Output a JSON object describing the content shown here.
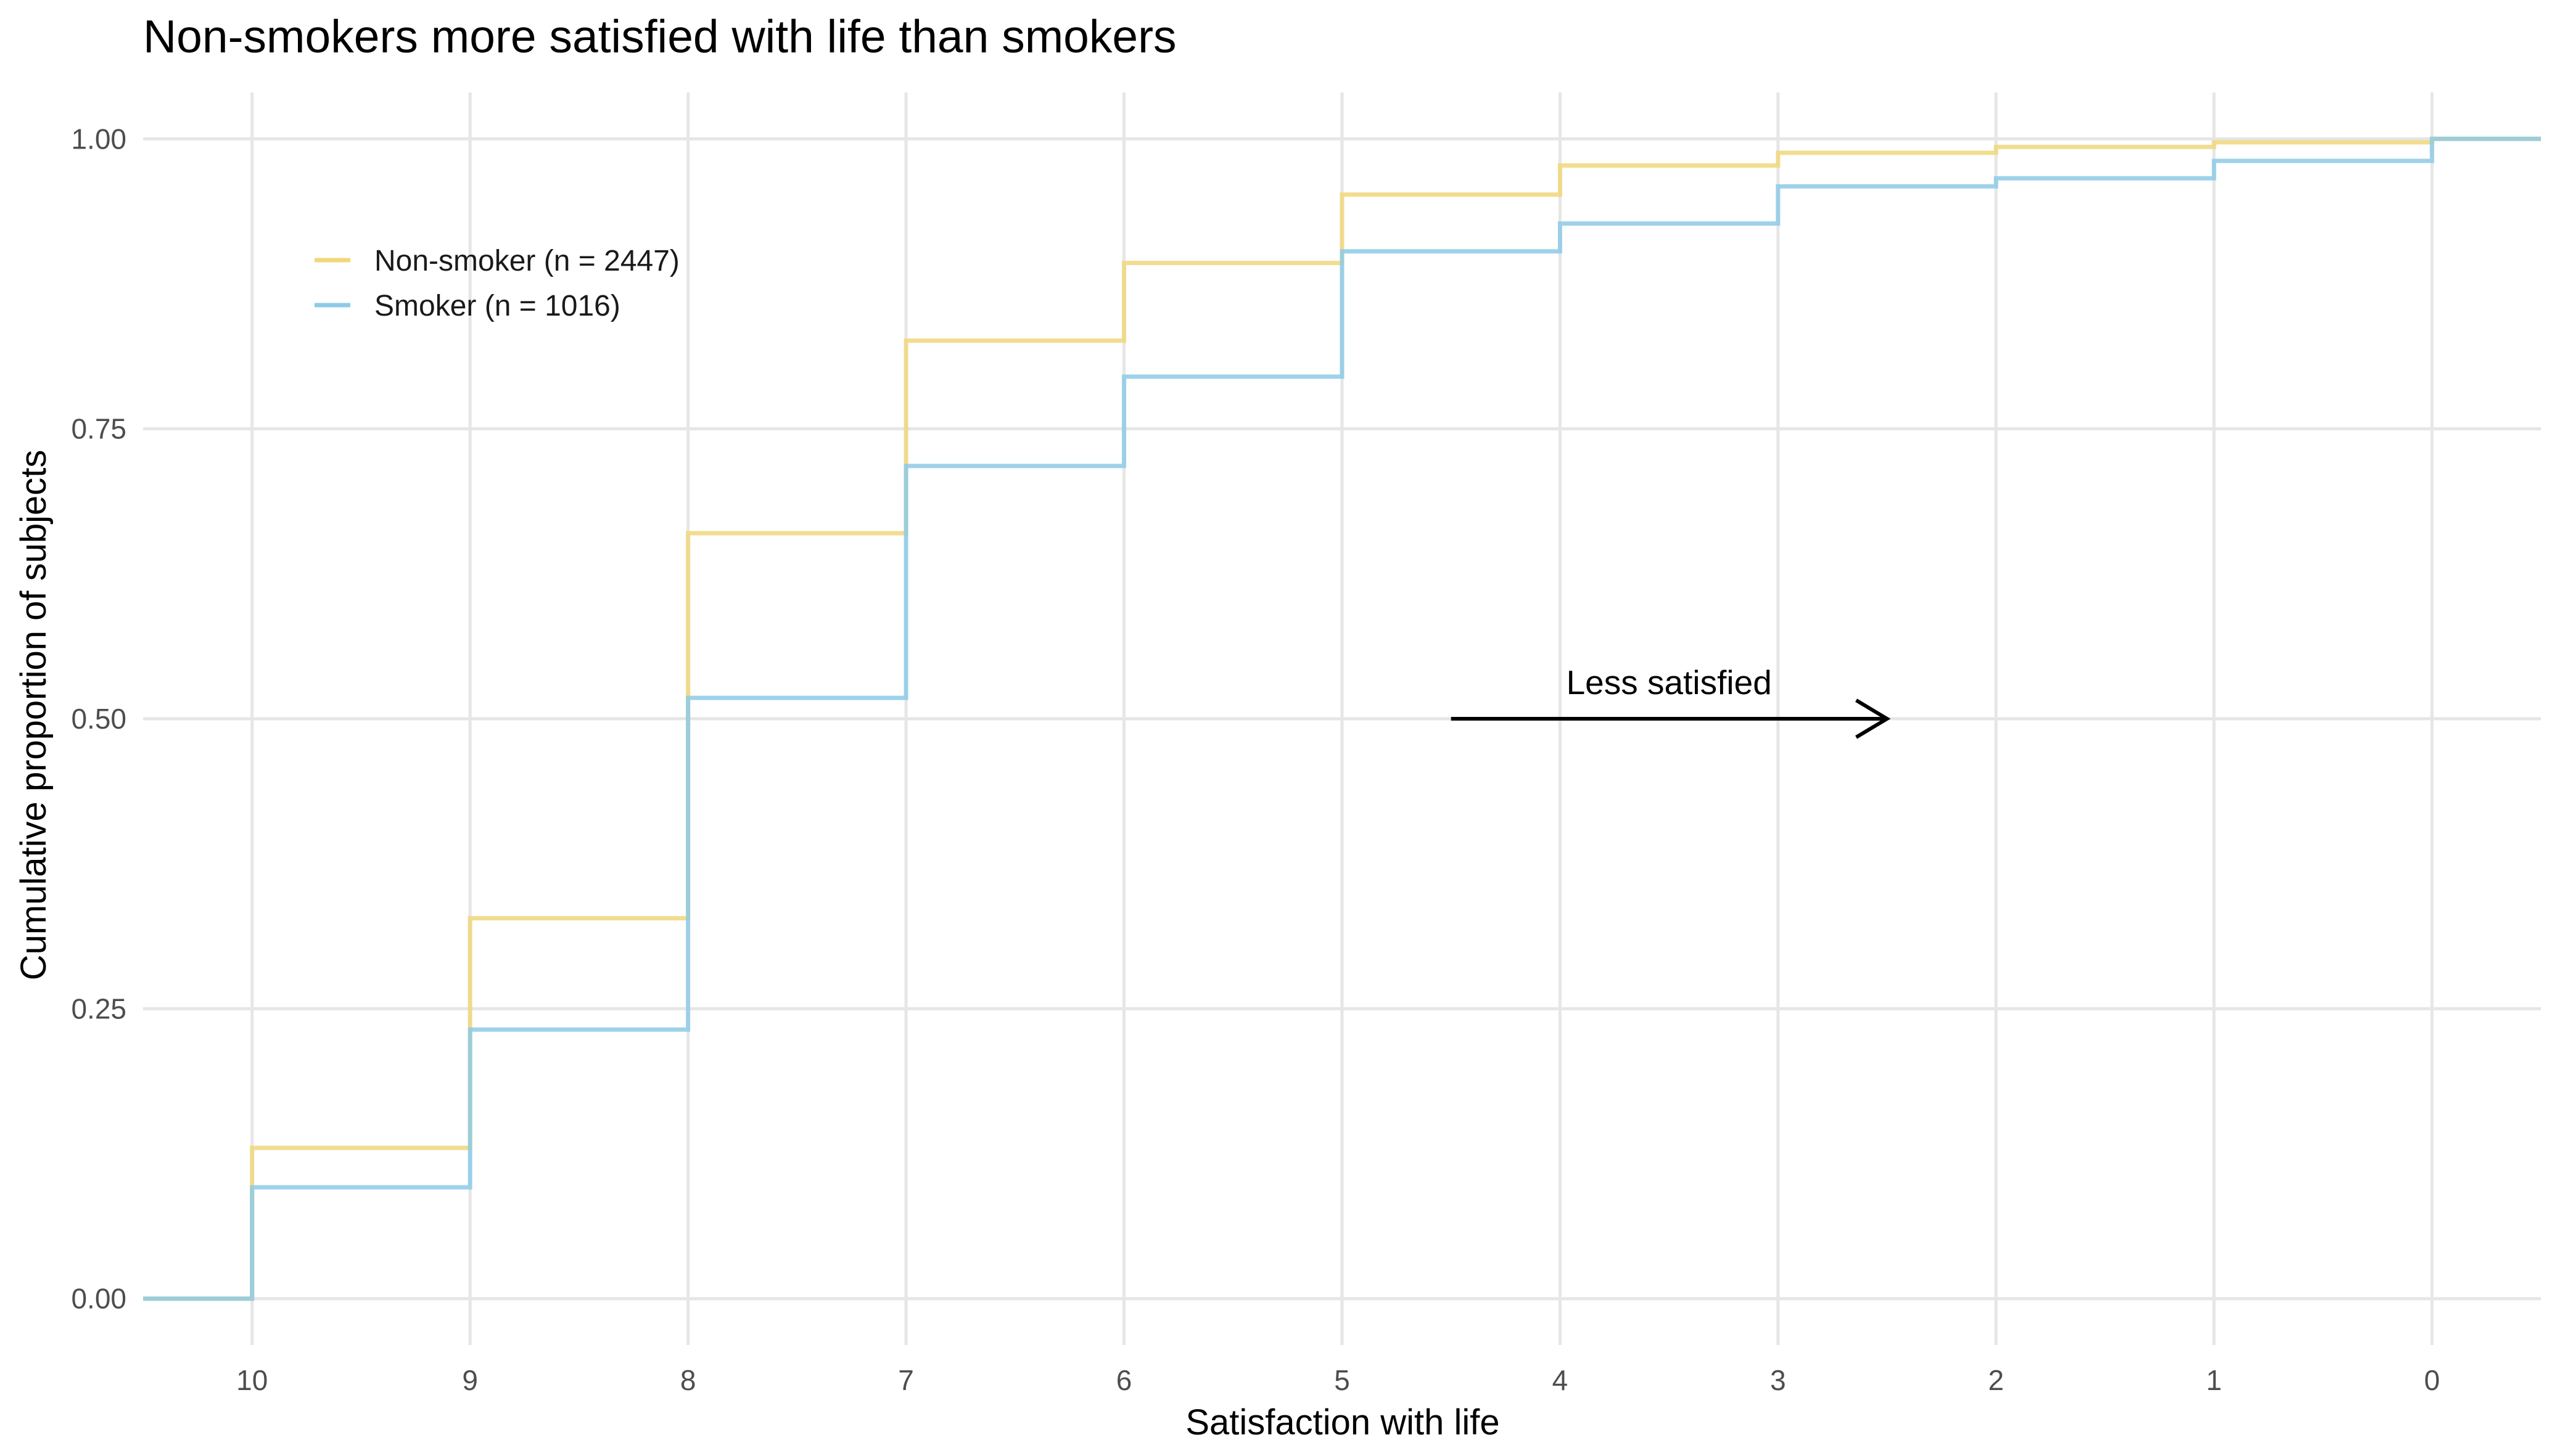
{
  "chart_data": {
    "type": "line",
    "step": true,
    "title": "Non-smokers more satisfied with life than smokers",
    "xlabel": "Satisfaction with life",
    "ylabel": "Cumulative proportion of subjects",
    "x_reversed": true,
    "xlim": [
      10.5,
      -0.5
    ],
    "ylim": [
      -0.04,
      1.04
    ],
    "x_ticks": [
      10,
      9,
      8,
      7,
      6,
      5,
      4,
      3,
      2,
      1,
      0
    ],
    "x_tick_labels": [
      "10",
      "9",
      "8",
      "7",
      "6",
      "5",
      "4",
      "3",
      "2",
      "1",
      "0"
    ],
    "y_ticks": [
      0,
      0.25,
      0.5,
      0.75,
      1.0
    ],
    "y_tick_labels": [
      "0.00",
      "0.25",
      "0.50",
      "0.75",
      "1.00"
    ],
    "grid": true,
    "legend_position": "top-left",
    "x": [
      10,
      9,
      8,
      7,
      6,
      5,
      4,
      3,
      2,
      1,
      0
    ],
    "series": [
      {
        "name": "Non-smoker (n = 2447)",
        "color": "#F0D77B",
        "values": [
          0.13,
          0.328,
          0.66,
          0.826,
          0.893,
          0.952,
          0.977,
          0.988,
          0.993,
          0.997,
          1.0
        ]
      },
      {
        "name": "Smoker (n = 1016)",
        "color": "#8DCAE6",
        "values": [
          0.096,
          0.232,
          0.518,
          0.718,
          0.795,
          0.903,
          0.927,
          0.959,
          0.966,
          0.981,
          1.0
        ]
      }
    ],
    "annotation": {
      "text": "Less satisfied",
      "arrow_from_x": 4.5,
      "arrow_to_x": 2.5,
      "y": 0.5
    }
  }
}
